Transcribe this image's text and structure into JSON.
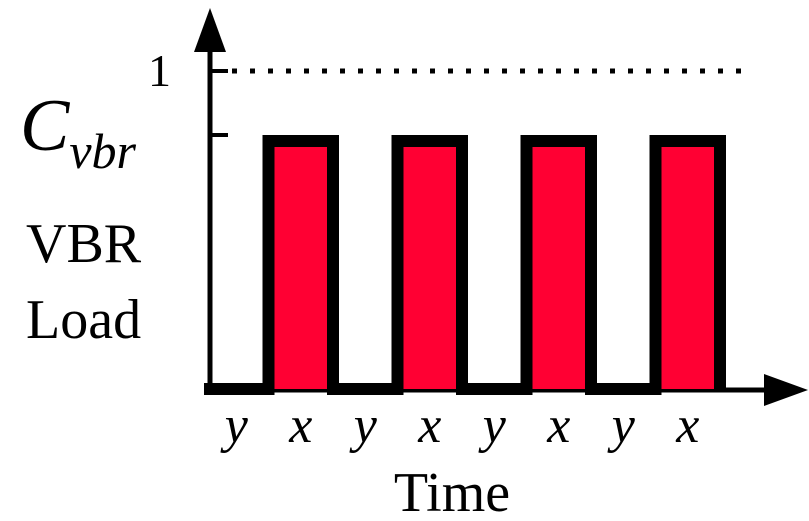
{
  "diagram": {
    "level_one_label": "1",
    "cvbr_label": {
      "main": "C",
      "sub": "vbr"
    },
    "y_axis_label": [
      "VBR",
      "Load"
    ],
    "x_axis_label": "Time",
    "slot_labels": [
      "y",
      "x",
      "y",
      "x",
      "y",
      "x",
      "y",
      "x"
    ],
    "pulse_color": "#ff0033",
    "cvbr_fraction": 0.78
  }
}
